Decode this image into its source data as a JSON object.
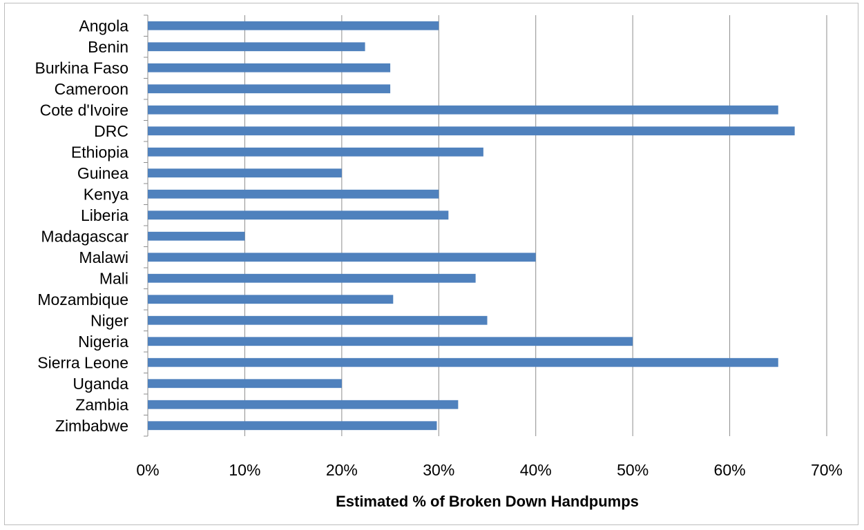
{
  "chart_data": {
    "type": "bar",
    "orientation": "horizontal",
    "categories": [
      "Angola",
      "Benin",
      "Burkina Faso",
      "Cameroon",
      "Cote d'Ivoire",
      "DRC",
      "Ethiopia",
      "Guinea",
      "Kenya",
      "Liberia",
      "Madagascar",
      "Malawi",
      "Mali",
      "Mozambique",
      "Niger",
      "Nigeria",
      "Sierra Leone",
      "Uganda",
      "Zambia",
      "Zimbabwe"
    ],
    "values": [
      30,
      22.4,
      25,
      25,
      65,
      66.7,
      34.6,
      20,
      30,
      31,
      10,
      40,
      33.8,
      25.3,
      35,
      50,
      65,
      20,
      32,
      29.8
    ],
    "title": "",
    "xlabel": "Estimated % of Broken Down Handpumps",
    "ylabel": "",
    "xlim": [
      0,
      70
    ],
    "xticks": [
      "0%",
      "10%",
      "20%",
      "30%",
      "40%",
      "50%",
      "60%",
      "70%"
    ],
    "grid": "vertical",
    "legend": "none",
    "bar_color": "#4f81bd",
    "grid_color": "#8c8c8c",
    "axis_color": "#8c8c8c"
  }
}
